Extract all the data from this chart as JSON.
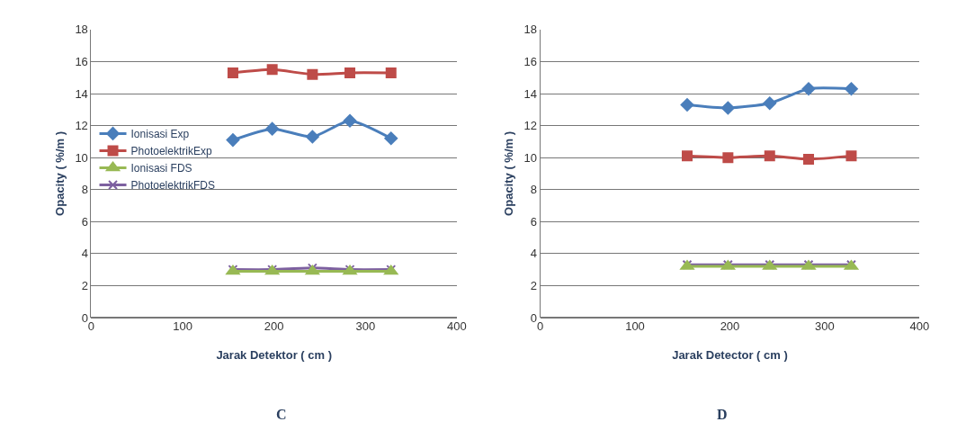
{
  "chart_data": [
    {
      "type": "line",
      "xlabel": "Jarak Detektor ( cm )",
      "ylabel": "Opacity ( %/m )",
      "x": [
        155,
        198,
        242,
        283,
        328
      ],
      "xlim": [
        0,
        400
      ],
      "xticks": [
        0,
        100,
        200,
        300,
        400
      ],
      "ylim": [
        0,
        18
      ],
      "yticks": [
        0,
        2,
        4,
        6,
        8,
        10,
        12,
        14,
        16,
        18
      ],
      "grid": "y",
      "legend": "left",
      "annotations": [
        "C"
      ],
      "series": [
        {
          "name": "Ionisasi Exp",
          "color": "#4a7ebb",
          "marker": "diamond",
          "values": [
            11.1,
            11.8,
            11.3,
            12.3,
            11.2
          ]
        },
        {
          "name": "PhotoelektrikExp",
          "color": "#be4b48",
          "marker": "square",
          "values": [
            15.3,
            15.5,
            15.2,
            15.3,
            15.3
          ]
        },
        {
          "name": "Ionisasi FDS",
          "color": "#98b954",
          "marker": "triangle",
          "values": [
            2.9,
            2.9,
            2.9,
            2.9,
            2.9
          ]
        },
        {
          "name": "PhotoelektrikFDS",
          "color": "#7d60a0",
          "marker": "cross",
          "values": [
            3.0,
            3.0,
            3.1,
            3.0,
            3.0
          ]
        }
      ]
    },
    {
      "type": "line",
      "xlabel": "Jarak Detector ( cm )",
      "ylabel": "Opacity ( %/m )",
      "x": [
        155,
        198,
        242,
        283,
        328
      ],
      "xlim": [
        0,
        400
      ],
      "xticks": [
        0,
        100,
        200,
        300,
        400
      ],
      "ylim": [
        0,
        18
      ],
      "yticks": [
        0,
        2,
        4,
        6,
        8,
        10,
        12,
        14,
        16,
        18
      ],
      "grid": "y",
      "annotations": [
        "D"
      ],
      "series": [
        {
          "color": "#4a7ebb",
          "marker": "diamond",
          "values": [
            13.3,
            13.1,
            13.4,
            14.3,
            14.3
          ]
        },
        {
          "color": "#be4b48",
          "marker": "square",
          "values": [
            10.1,
            10.0,
            10.1,
            9.9,
            10.1
          ]
        },
        {
          "color": "#98b954",
          "marker": "triangle",
          "values": [
            3.2,
            3.2,
            3.2,
            3.2,
            3.2
          ]
        },
        {
          "color": "#7d60a0",
          "marker": "cross",
          "values": [
            3.3,
            3.3,
            3.3,
            3.3,
            3.3
          ]
        }
      ]
    }
  ]
}
